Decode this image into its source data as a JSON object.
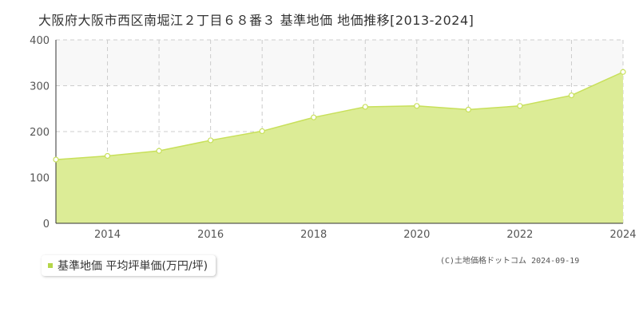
{
  "chart_data": {
    "type": "area",
    "title": "大阪府大阪市西区南堀江２丁目６８番３ 基準地価 地価推移[2013-2024]",
    "x": [
      2013,
      2014,
      2015,
      2016,
      2017,
      2018,
      2019,
      2020,
      2021,
      2022,
      2023,
      2024
    ],
    "x_tick_labels": [
      "2014",
      "2016",
      "2018",
      "2020",
      "2022",
      "2024"
    ],
    "x_tick_values": [
      2014,
      2016,
      2018,
      2020,
      2022,
      2024
    ],
    "y_tick_labels": [
      "0",
      "100",
      "200",
      "300",
      "400"
    ],
    "y_tick_values": [
      0,
      100,
      200,
      300,
      400
    ],
    "xlim": [
      2013,
      2024
    ],
    "ylim": [
      0,
      400
    ],
    "grid": true,
    "series": [
      {
        "name": "基準地価 平均坪単価(万円/坪)",
        "values": [
          139,
          147,
          158,
          181,
          201,
          231,
          254,
          256,
          248,
          256,
          279,
          330
        ],
        "line_color": "#c8e05a",
        "fill_color": "#dcec96"
      }
    ],
    "legend_position": "bottom-left"
  },
  "legend": {
    "label": "基準地価 平均坪単価(万円/坪)"
  },
  "copyright": "(C)土地価格ドットコム 2024-09-19",
  "colors": {
    "band": "#f8f8f8",
    "grid": "#cccccc",
    "axis": "#333333"
  }
}
